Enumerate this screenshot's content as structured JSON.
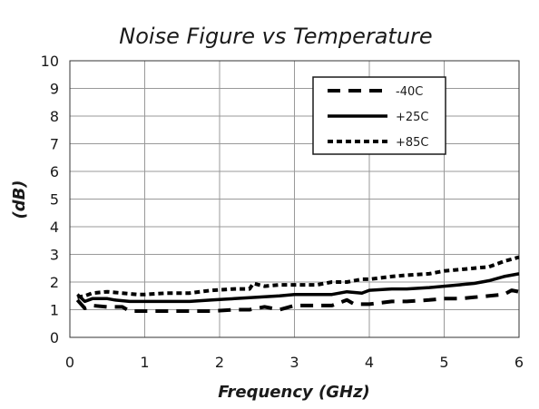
{
  "chart_data": {
    "type": "line",
    "title": "Noise Figure vs Temperature",
    "xlabel": "Frequency (GHz)",
    "ylabel": "(dB)",
    "xlim": [
      0,
      6
    ],
    "ylim": [
      0,
      10
    ],
    "xticks": [
      "0",
      "1",
      "2",
      "3",
      "4",
      "5",
      "6"
    ],
    "yticks": [
      "0",
      "1",
      "2",
      "3",
      "4",
      "5",
      "6",
      "7",
      "8",
      "9",
      "10"
    ],
    "grid": true,
    "legend_position": "top-right",
    "series": [
      {
        "name": "-40C",
        "style": "dashed",
        "color": "#000000",
        "x": [
          0.1,
          0.2,
          0.3,
          0.5,
          0.7,
          0.8,
          1.0,
          1.3,
          1.6,
          1.9,
          2.2,
          2.4,
          2.6,
          2.8,
          3.0,
          3.3,
          3.5,
          3.7,
          3.8,
          4.0,
          4.3,
          4.5,
          4.8,
          5.0,
          5.2,
          5.4,
          5.6,
          5.8,
          5.9,
          6.0
        ],
        "y": [
          1.35,
          1.05,
          1.15,
          1.1,
          1.1,
          0.95,
          0.95,
          0.95,
          0.95,
          0.95,
          1.0,
          1.0,
          1.1,
          1.0,
          1.15,
          1.15,
          1.15,
          1.35,
          1.2,
          1.2,
          1.3,
          1.3,
          1.35,
          1.4,
          1.4,
          1.45,
          1.5,
          1.55,
          1.7,
          1.65
        ]
      },
      {
        "name": "+25C",
        "style": "solid",
        "color": "#000000",
        "x": [
          0.1,
          0.2,
          0.3,
          0.5,
          0.6,
          0.8,
          1.0,
          1.3,
          1.6,
          1.9,
          2.2,
          2.5,
          2.8,
          3.0,
          3.2,
          3.5,
          3.7,
          3.9,
          4.0,
          4.3,
          4.5,
          4.8,
          5.0,
          5.2,
          5.4,
          5.6,
          5.8,
          6.0
        ],
        "y": [
          1.55,
          1.3,
          1.4,
          1.4,
          1.35,
          1.3,
          1.3,
          1.3,
          1.3,
          1.35,
          1.4,
          1.45,
          1.5,
          1.55,
          1.55,
          1.55,
          1.65,
          1.6,
          1.7,
          1.75,
          1.75,
          1.8,
          1.85,
          1.9,
          1.95,
          2.05,
          2.2,
          2.3
        ]
      },
      {
        "name": "+85C",
        "style": "dotted",
        "color": "#000000",
        "x": [
          0.1,
          0.2,
          0.3,
          0.5,
          0.7,
          0.9,
          1.0,
          1.3,
          1.6,
          1.9,
          2.2,
          2.4,
          2.45,
          2.6,
          2.8,
          3.0,
          3.3,
          3.5,
          3.7,
          3.9,
          4.0,
          4.3,
          4.5,
          4.8,
          5.0,
          5.2,
          5.4,
          5.6,
          5.8,
          6.0
        ],
        "y": [
          1.45,
          1.5,
          1.6,
          1.65,
          1.6,
          1.55,
          1.55,
          1.6,
          1.6,
          1.7,
          1.75,
          1.75,
          1.95,
          1.85,
          1.9,
          1.9,
          1.9,
          2.0,
          2.0,
          2.1,
          2.1,
          2.2,
          2.25,
          2.3,
          2.4,
          2.45,
          2.5,
          2.55,
          2.75,
          2.9
        ]
      }
    ]
  }
}
